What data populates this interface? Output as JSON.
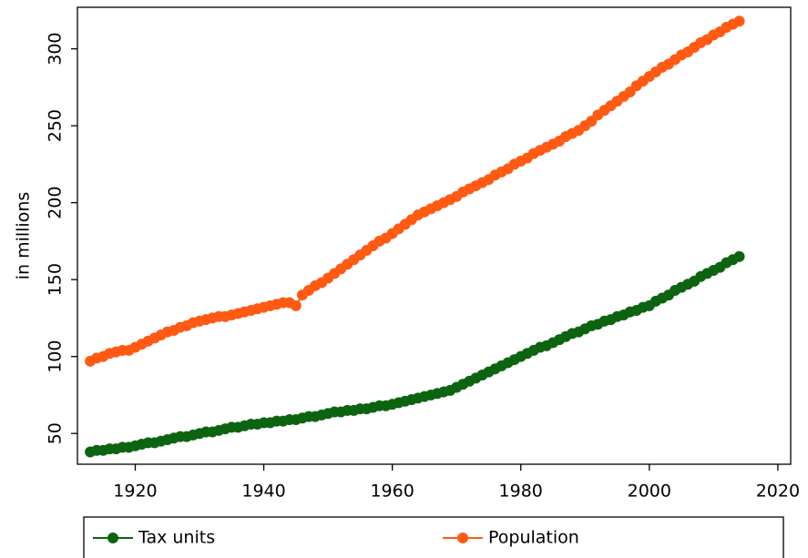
{
  "chart_data": {
    "type": "line",
    "ylabel": "in millions",
    "x": [
      1913,
      1914,
      1915,
      1916,
      1917,
      1918,
      1919,
      1920,
      1921,
      1922,
      1923,
      1924,
      1925,
      1926,
      1927,
      1928,
      1929,
      1930,
      1931,
      1932,
      1933,
      1934,
      1935,
      1936,
      1937,
      1938,
      1939,
      1940,
      1941,
      1942,
      1943,
      1944,
      1945,
      1946,
      1947,
      1948,
      1949,
      1950,
      1951,
      1952,
      1953,
      1954,
      1955,
      1956,
      1957,
      1958,
      1959,
      1960,
      1961,
      1962,
      1963,
      1964,
      1965,
      1966,
      1967,
      1968,
      1969,
      1970,
      1971,
      1972,
      1973,
      1974,
      1975,
      1976,
      1977,
      1978,
      1979,
      1980,
      1981,
      1982,
      1983,
      1984,
      1985,
      1986,
      1987,
      1988,
      1989,
      1990,
      1991,
      1992,
      1993,
      1994,
      1995,
      1996,
      1997,
      1998,
      1999,
      2000,
      2001,
      2002,
      2003,
      2004,
      2005,
      2006,
      2007,
      2008,
      2009,
      2010,
      2011,
      2012,
      2013,
      2014
    ],
    "series": [
      {
        "name": "Tax units",
        "color": "#0d6410",
        "values": [
          38,
          39,
          39,
          40,
          40,
          41,
          41,
          42,
          43,
          44,
          44,
          45,
          46,
          47,
          48,
          48,
          49,
          50,
          51,
          51,
          52,
          53,
          54,
          54,
          55,
          56,
          56,
          57,
          57,
          58,
          58,
          59,
          59,
          60,
          61,
          61,
          62,
          63,
          64,
          64,
          65,
          65,
          66,
          66,
          67,
          68,
          68,
          69,
          70,
          71,
          72,
          73,
          74,
          75,
          76,
          77,
          78,
          80,
          82,
          84,
          86,
          88,
          90,
          92,
          94,
          96,
          98,
          100,
          102,
          104,
          106,
          107,
          109,
          111,
          113,
          115,
          116,
          118,
          120,
          121,
          123,
          124,
          126,
          127,
          129,
          130,
          132,
          133,
          136,
          138,
          140,
          143,
          145,
          147,
          149,
          152,
          154,
          156,
          158,
          161,
          163,
          165
        ]
      },
      {
        "name": "Population",
        "color": "#ff5a14",
        "values": [
          97,
          99,
          100,
          102,
          103,
          104,
          104,
          106,
          108,
          110,
          112,
          114,
          116,
          117,
          119,
          120,
          122,
          123,
          124,
          125,
          126,
          126,
          127,
          128,
          129,
          130,
          131,
          132,
          133,
          134,
          135,
          135,
          133,
          140,
          143,
          146,
          148,
          151,
          154,
          157,
          160,
          163,
          166,
          169,
          172,
          175,
          177,
          180,
          183,
          186,
          189,
          192,
          194,
          196,
          198,
          200,
          202,
          204,
          207,
          209,
          211,
          213,
          215,
          218,
          220,
          222,
          225,
          227,
          229,
          232,
          234,
          236,
          238,
          240,
          243,
          245,
          247,
          250,
          253,
          257,
          260,
          263,
          266,
          269,
          272,
          276,
          279,
          282,
          285,
          288,
          290,
          293,
          296,
          298,
          301,
          304,
          306,
          309,
          311,
          314,
          316,
          318
        ]
      }
    ],
    "xlim": [
      1911,
      2022
    ],
    "xticks": [
      1920,
      1940,
      1960,
      1980,
      2000,
      2020
    ],
    "ylim": [
      30,
      327
    ],
    "yticks": [
      50,
      100,
      150,
      200,
      250,
      300
    ],
    "legend": "bottom"
  }
}
